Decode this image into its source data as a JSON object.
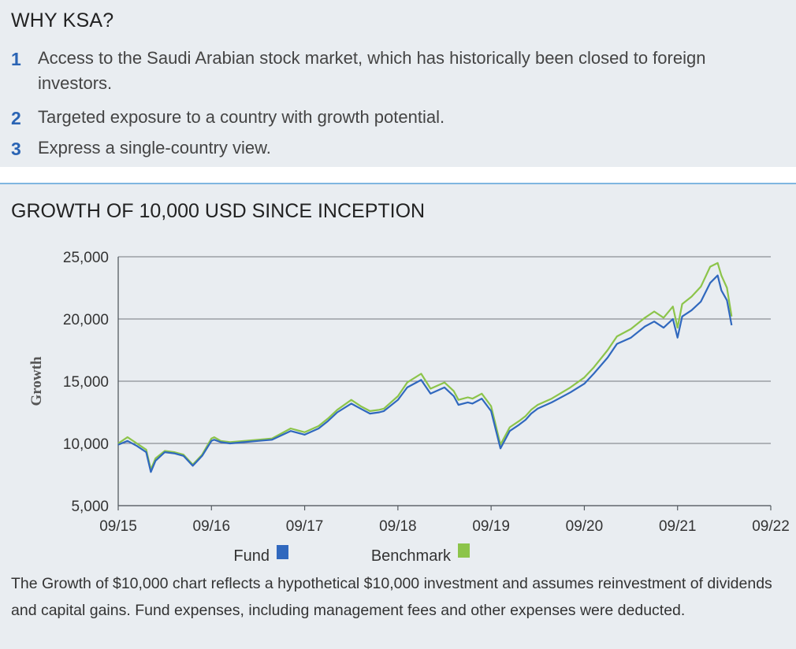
{
  "why": {
    "title": "WHY KSA?",
    "reasons": [
      {
        "num": "1",
        "text": "Access to the Saudi Arabian stock market, which has historically been closed to foreign investors."
      },
      {
        "num": "2",
        "text": "Targeted exposure to a country with growth potential."
      },
      {
        "num": "3",
        "text": "Express a single-country view."
      }
    ]
  },
  "colors": {
    "accent_blue": "#2a64b4",
    "fund": "#3068be",
    "benchmark": "#8cc44a",
    "divider": "#7fb6e0",
    "grid": "#8a8f95"
  },
  "chart_title": "GROWTH OF 10,000 USD SINCE INCEPTION",
  "footnote": "The Growth of $10,000 chart reflects a hypothetical $10,000 investment and assumes reinvestment of dividends and capital gains. Fund expenses, including management fees and other expenses were deducted.",
  "chart_data": {
    "type": "line",
    "title": "GROWTH OF 10,000 USD SINCE INCEPTION",
    "xlabel": "",
    "ylabel": "Growth",
    "ylim": [
      5000,
      25000
    ],
    "yticks": [
      5000,
      10000,
      15000,
      20000,
      25000
    ],
    "ytick_labels": [
      "5,000",
      "10,000",
      "15,000",
      "20,000",
      "25,000"
    ],
    "xlim": [
      2015.75,
      2022.75
    ],
    "xticks": [
      2015.75,
      2016.75,
      2017.75,
      2018.75,
      2019.75,
      2020.75,
      2021.75,
      2022.75
    ],
    "xtick_labels": [
      "09/15",
      "09/16",
      "09/17",
      "09/18",
      "09/19",
      "09/20",
      "09/21",
      "09/22"
    ],
    "grid": true,
    "legend": [
      "Fund",
      "Benchmark"
    ],
    "legend_position": "bottom",
    "x": [
      2015.75,
      2015.85,
      2015.95,
      2016.05,
      2016.1,
      2016.15,
      2016.25,
      2016.35,
      2016.45,
      2016.55,
      2016.65,
      2016.75,
      2016.78,
      2016.85,
      2016.95,
      2017.1,
      2017.25,
      2017.4,
      2017.6,
      2017.75,
      2017.9,
      2018.0,
      2018.1,
      2018.25,
      2018.35,
      2018.45,
      2018.55,
      2018.6,
      2018.75,
      2018.85,
      2019.0,
      2019.1,
      2019.25,
      2019.35,
      2019.4,
      2019.5,
      2019.55,
      2019.65,
      2019.75,
      2019.85,
      2019.95,
      2020.05,
      2020.12,
      2020.18,
      2020.25,
      2020.4,
      2020.6,
      2020.75,
      2020.85,
      2021.0,
      2021.1,
      2021.25,
      2021.4,
      2021.5,
      2021.6,
      2021.7,
      2021.75,
      2021.8,
      2021.9,
      2022.0,
      2022.1,
      2022.18,
      2022.22,
      2022.28,
      2022.33
    ],
    "series": [
      {
        "name": "Fund",
        "values": [
          9900,
          10200,
          9800,
          9300,
          7700,
          8600,
          9300,
          9200,
          9000,
          8200,
          9000,
          10200,
          10300,
          10100,
          10000,
          10100,
          10200,
          10300,
          11000,
          10700,
          11200,
          11800,
          12500,
          13200,
          12800,
          12400,
          12500,
          12600,
          13500,
          14500,
          15100,
          14000,
          14500,
          13800,
          13100,
          13300,
          13200,
          13600,
          12600,
          9600,
          11000,
          11500,
          11900,
          12400,
          12800,
          13300,
          14100,
          14800,
          15600,
          16900,
          18000,
          18500,
          19400,
          19800,
          19300,
          20000,
          18500,
          20200,
          20700,
          21400,
          22900,
          23500,
          22300,
          21500,
          19500
        ]
      },
      {
        "name": "Benchmark",
        "values": [
          10000,
          10500,
          10000,
          9500,
          7900,
          8800,
          9400,
          9300,
          9100,
          8300,
          9100,
          10400,
          10500,
          10200,
          10100,
          10200,
          10300,
          10400,
          11200,
          10900,
          11400,
          12000,
          12700,
          13500,
          13000,
          12600,
          12700,
          12800,
          13800,
          14900,
          15600,
          14400,
          14900,
          14200,
          13500,
          13700,
          13600,
          14000,
          13000,
          9900,
          11300,
          11800,
          12200,
          12700,
          13100,
          13600,
          14500,
          15300,
          16100,
          17500,
          18600,
          19200,
          20100,
          20600,
          20100,
          21000,
          19300,
          21200,
          21800,
          22600,
          24200,
          24500,
          23500,
          22500,
          20200
        ]
      }
    ]
  }
}
